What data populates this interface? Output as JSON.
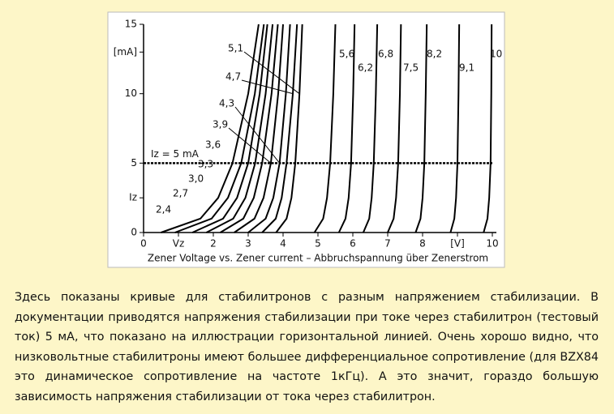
{
  "chart_data": {
    "type": "line",
    "xlabel": "Zener Voltage vs. Zener current – Abbruchspannung über Zenerstrom",
    "xlim": [
      0,
      10
    ],
    "ylim": [
      0,
      15
    ],
    "xticks": [
      0,
      {
        "value": 1,
        "label": "Vz"
      },
      2,
      3,
      4,
      5,
      6,
      7,
      8,
      {
        "value": 9,
        "label": "[V]"
      },
      10
    ],
    "yticks": [
      0,
      {
        "value": 2.5,
        "label": "Iz"
      },
      5,
      10,
      {
        "value": 13,
        "label": "[mA]"
      },
      15
    ],
    "reference_line": {
      "value": 5,
      "label": "Iz = 5 mA"
    },
    "series": [
      {
        "name": "2,4",
        "color": "#000000",
        "x": [
          0.5,
          1.63,
          2.14,
          2.55,
          3.0,
          3.3
        ],
        "values": [
          0,
          1,
          2.5,
          5,
          10,
          15
        ]
      },
      {
        "name": "2,7",
        "color": "#000000",
        "x": [
          0.9,
          1.95,
          2.42,
          2.8,
          3.19,
          3.45
        ],
        "values": [
          0,
          1,
          2.5,
          5,
          10,
          15
        ]
      },
      {
        "name": "3,0",
        "color": "#000000",
        "x": [
          1.4,
          2.28,
          2.68,
          3.0,
          3.33,
          3.55
        ],
        "values": [
          0,
          1,
          2.5,
          5,
          10,
          15
        ]
      },
      {
        "name": "3,3",
        "color": "#000000",
        "x": [
          1.8,
          2.57,
          2.92,
          3.2,
          3.5,
          3.7
        ],
        "values": [
          0,
          1,
          2.5,
          5,
          10,
          15
        ]
      },
      {
        "name": "3,6",
        "color": "#000000",
        "x": [
          2.2,
          2.86,
          3.16,
          3.4,
          3.67,
          3.85
        ],
        "values": [
          0,
          1,
          2.5,
          5,
          10,
          15
        ]
      },
      {
        "name": "3,9",
        "color": "#000000",
        "x": [
          2.6,
          3.18,
          3.44,
          3.65,
          3.86,
          4.0
        ],
        "values": [
          0,
          1,
          2.5,
          5,
          10,
          15
        ]
      },
      {
        "name": "4,3",
        "color": "#000000",
        "x": [
          3.0,
          3.5,
          3.72,
          3.9,
          4.08,
          4.2
        ],
        "values": [
          0,
          1,
          2.5,
          5,
          10,
          15
        ]
      },
      {
        "name": "4,7",
        "color": "#000000",
        "x": [
          3.4,
          3.79,
          3.96,
          4.1,
          4.28,
          4.4
        ],
        "values": [
          0,
          1,
          2.5,
          5,
          10,
          15
        ]
      },
      {
        "name": "5,1",
        "color": "#000000",
        "x": [
          3.8,
          4.1,
          4.24,
          4.35,
          4.47,
          4.55
        ],
        "values": [
          0,
          1,
          2.5,
          5,
          10,
          15
        ]
      },
      {
        "name": "5,6",
        "color": "#000000",
        "x": [
          4.9,
          5.15,
          5.26,
          5.35,
          5.44,
          5.5
        ],
        "values": [
          0,
          1,
          2.5,
          5,
          10,
          15
        ]
      },
      {
        "name": "6,2",
        "color": "#000000",
        "x": [
          5.6,
          5.79,
          5.88,
          5.95,
          6.01,
          6.05
        ],
        "values": [
          0,
          1,
          2.5,
          5,
          10,
          15
        ]
      },
      {
        "name": "6,8",
        "color": "#000000",
        "x": [
          6.3,
          6.47,
          6.54,
          6.6,
          6.66,
          6.7
        ],
        "values": [
          0,
          1,
          2.5,
          5,
          10,
          15
        ]
      },
      {
        "name": "7,5",
        "color": "#000000",
        "x": [
          7.0,
          7.17,
          7.24,
          7.3,
          7.35,
          7.38
        ],
        "values": [
          0,
          1,
          2.5,
          5,
          10,
          15
        ]
      },
      {
        "name": "8,2",
        "color": "#000000",
        "x": [
          7.8,
          7.94,
          8.0,
          8.05,
          8.09,
          8.12
        ],
        "values": [
          0,
          1,
          2.5,
          5,
          10,
          15
        ]
      },
      {
        "name": "9,1",
        "color": "#000000",
        "x": [
          8.8,
          8.91,
          8.96,
          9.0,
          9.03,
          9.05
        ],
        "values": [
          0,
          1,
          2.5,
          5,
          10,
          15
        ]
      },
      {
        "name": "10",
        "color": "#000000",
        "x": [
          9.75,
          9.86,
          9.91,
          9.95,
          9.97,
          9.98
        ],
        "values": [
          0,
          1,
          2.5,
          5,
          10,
          15
        ]
      }
    ]
  },
  "description": "Здесь показаны кривые для стабилитронов с разным напряжением стабилизации. В документации приводятся напряжения стабилизации при токе через стабилитрон (тестовый ток) 5 мА, что показано на иллюстрации горизонтальной линией. Очень хорошо видно, что низковольтные стабилитроны имеют большее дифференциальное сопротивление (для BZX84 это динамическое сопротивление на частоте 1кГц). А это значит, гораздо большую зависимость напряжения стабилизации от тока через стабилитрон."
}
